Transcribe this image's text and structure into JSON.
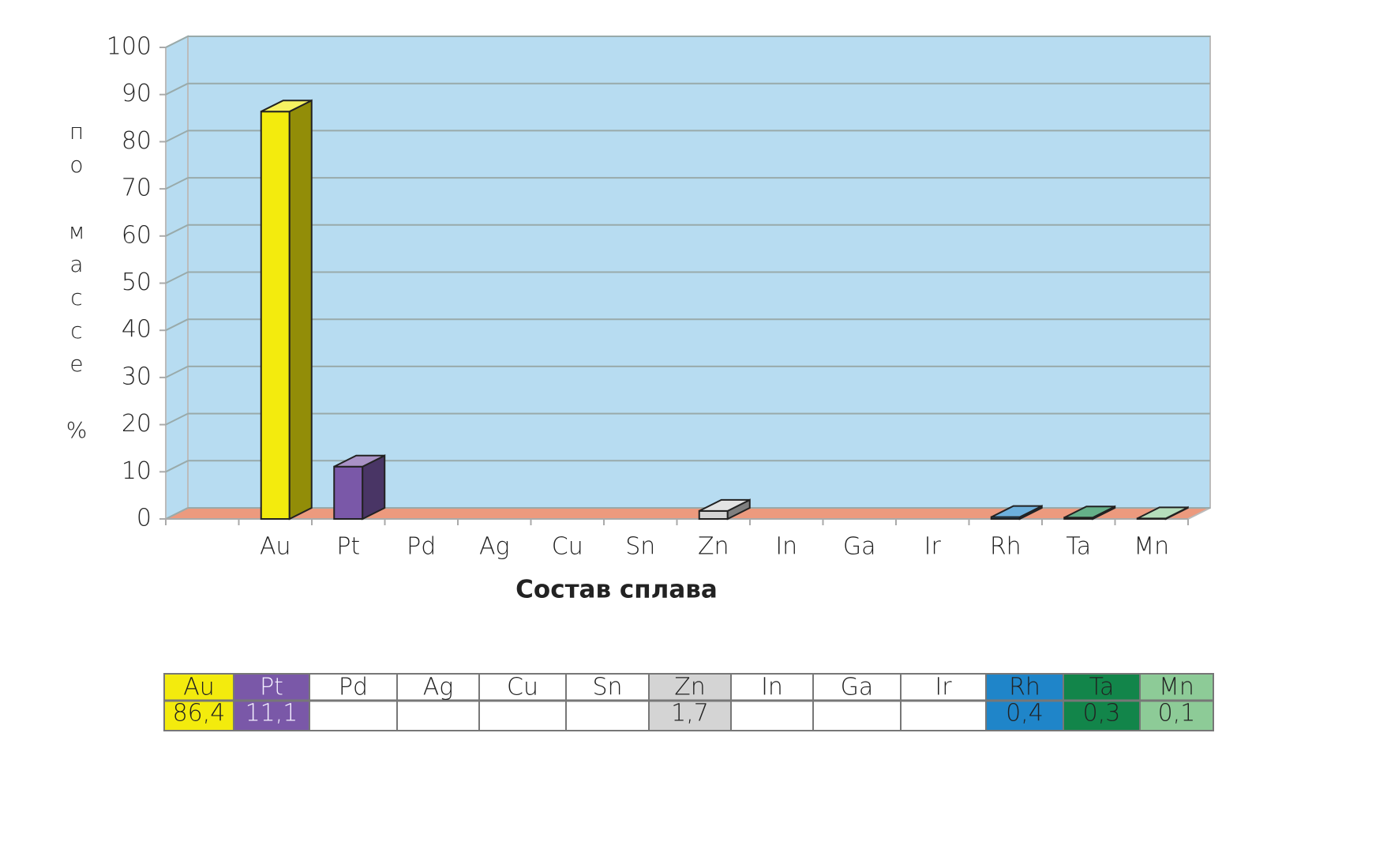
{
  "chart_data": {
    "type": "bar3d",
    "y_label": "по массе %",
    "x_label": "Состав сплава",
    "categories": [
      null,
      "Au",
      "Pt",
      "Pd",
      "Ag",
      "Cu",
      "Sn",
      "Zn",
      "In",
      "Ga",
      "Ir",
      "Rh",
      "Ta",
      "Mn"
    ],
    "values": [
      null,
      86.4,
      11.1,
      null,
      null,
      null,
      null,
      1.7,
      null,
      null,
      null,
      0.4,
      0.3,
      0.1
    ],
    "value_labels": [
      null,
      "86,4",
      "11,1",
      null,
      null,
      null,
      null,
      "1,7",
      null,
      null,
      null,
      "0,4",
      "0,3",
      "0,1"
    ],
    "colors": [
      null,
      "#f3eb0d",
      "#7a58a8",
      null,
      null,
      null,
      null,
      "#d4d4d4",
      null,
      null,
      null,
      "#1f85c9",
      "#12854a",
      "#8dcb97"
    ],
    "ylim": [
      0,
      100
    ],
    "yticks": [
      0,
      10,
      20,
      30,
      40,
      50,
      60,
      70,
      80,
      90,
      100
    ],
    "grid": true
  }
}
